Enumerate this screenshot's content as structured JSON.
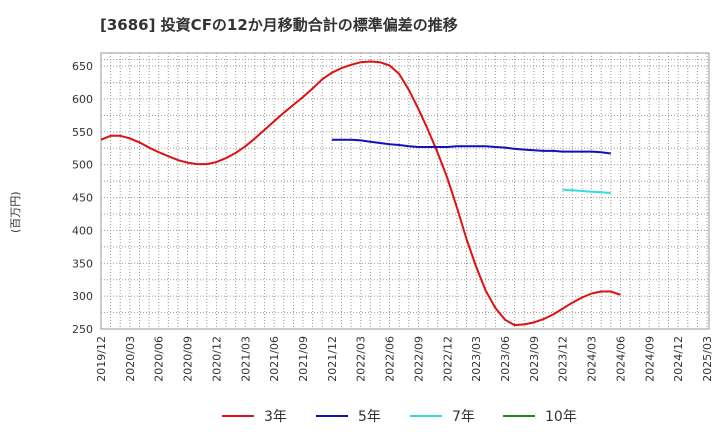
{
  "title": "[3686]  投資CFの12か月移動合計の標準偏差の推移",
  "ylabel": "(百万円)",
  "chart_data": {
    "type": "line",
    "title": "[3686]  投資CFの12か月移動合計の標準偏差の推移",
    "xlabel": "",
    "ylabel": "(百万円)",
    "ylim": [
      250,
      670
    ],
    "yticks": [
      250,
      300,
      350,
      400,
      450,
      500,
      550,
      600,
      650
    ],
    "xticks": [
      "2019/12",
      "2020/03",
      "2020/06",
      "2020/09",
      "2020/12",
      "2021/03",
      "2021/06",
      "2021/09",
      "2021/12",
      "2022/03",
      "2022/06",
      "2022/09",
      "2022/12",
      "2023/03",
      "2023/06",
      "2023/09",
      "2023/12",
      "2024/03",
      "2024/06",
      "2024/09",
      "2024/12",
      "2025/03"
    ],
    "grid": true,
    "legend_position": "bottom",
    "series": [
      {
        "name": "3年",
        "color": "#dd1111",
        "points": [
          [
            "2019/12",
            538
          ],
          [
            "2020/01",
            544
          ],
          [
            "2020/02",
            544
          ],
          [
            "2020/03",
            540
          ],
          [
            "2020/04",
            534
          ],
          [
            "2020/05",
            526
          ],
          [
            "2020/06",
            519
          ],
          [
            "2020/07",
            513
          ],
          [
            "2020/08",
            507
          ],
          [
            "2020/09",
            503
          ],
          [
            "2020/10",
            501
          ],
          [
            "2020/11",
            501
          ],
          [
            "2020/12",
            504
          ],
          [
            "2021/01",
            510
          ],
          [
            "2021/02",
            518
          ],
          [
            "2021/03",
            528
          ],
          [
            "2021/04",
            540
          ],
          [
            "2021/05",
            553
          ],
          [
            "2021/06",
            566
          ],
          [
            "2021/07",
            579
          ],
          [
            "2021/08",
            591
          ],
          [
            "2021/09",
            603
          ],
          [
            "2021/10",
            616
          ],
          [
            "2021/11",
            630
          ],
          [
            "2021/12",
            640
          ],
          [
            "2022/01",
            647
          ],
          [
            "2022/02",
            652
          ],
          [
            "2022/03",
            656
          ],
          [
            "2022/04",
            657
          ],
          [
            "2022/05",
            656
          ],
          [
            "2022/06",
            651
          ],
          [
            "2022/07",
            638
          ],
          [
            "2022/08",
            614
          ],
          [
            "2022/09",
            585
          ],
          [
            "2022/10",
            553
          ],
          [
            "2022/11",
            518
          ],
          [
            "2022/12",
            480
          ],
          [
            "2023/01",
            435
          ],
          [
            "2023/02",
            387
          ],
          [
            "2023/03",
            345
          ],
          [
            "2023/04",
            308
          ],
          [
            "2023/05",
            282
          ],
          [
            "2023/06",
            264
          ],
          [
            "2023/07",
            256
          ],
          [
            "2023/08",
            257
          ],
          [
            "2023/09",
            260
          ],
          [
            "2023/10",
            265
          ],
          [
            "2023/11",
            272
          ],
          [
            "2023/12",
            281
          ],
          [
            "2024/01",
            290
          ],
          [
            "2024/02",
            298
          ],
          [
            "2024/03",
            304
          ],
          [
            "2024/04",
            307
          ],
          [
            "2024/05",
            307
          ],
          [
            "2024/06",
            302
          ]
        ]
      },
      {
        "name": "5年",
        "color": "#1111bb",
        "points": [
          [
            "2021/12",
            538
          ],
          [
            "2022/01",
            538
          ],
          [
            "2022/02",
            538
          ],
          [
            "2022/03",
            537
          ],
          [
            "2022/04",
            535
          ],
          [
            "2022/05",
            533
          ],
          [
            "2022/06",
            531
          ],
          [
            "2022/07",
            530
          ],
          [
            "2022/08",
            528
          ],
          [
            "2022/09",
            527
          ],
          [
            "2022/10",
            527
          ],
          [
            "2022/11",
            527
          ],
          [
            "2022/12",
            527
          ],
          [
            "2023/01",
            528
          ],
          [
            "2023/02",
            528
          ],
          [
            "2023/03",
            528
          ],
          [
            "2023/04",
            528
          ],
          [
            "2023/05",
            527
          ],
          [
            "2023/06",
            526
          ],
          [
            "2023/07",
            524
          ],
          [
            "2023/08",
            523
          ],
          [
            "2023/09",
            522
          ],
          [
            "2023/10",
            521
          ],
          [
            "2023/11",
            521
          ],
          [
            "2023/12",
            520
          ],
          [
            "2024/01",
            520
          ],
          [
            "2024/02",
            520
          ],
          [
            "2024/03",
            520
          ],
          [
            "2024/04",
            519
          ],
          [
            "2024/05",
            517
          ]
        ]
      },
      {
        "name": "7年",
        "color": "#33dddd",
        "points": [
          [
            "2023/12",
            462
          ],
          [
            "2024/01",
            461
          ],
          [
            "2024/02",
            460
          ],
          [
            "2024/03",
            459
          ],
          [
            "2024/04",
            458
          ],
          [
            "2024/05",
            457
          ]
        ]
      },
      {
        "name": "10年",
        "color": "#228822",
        "points": []
      }
    ]
  }
}
